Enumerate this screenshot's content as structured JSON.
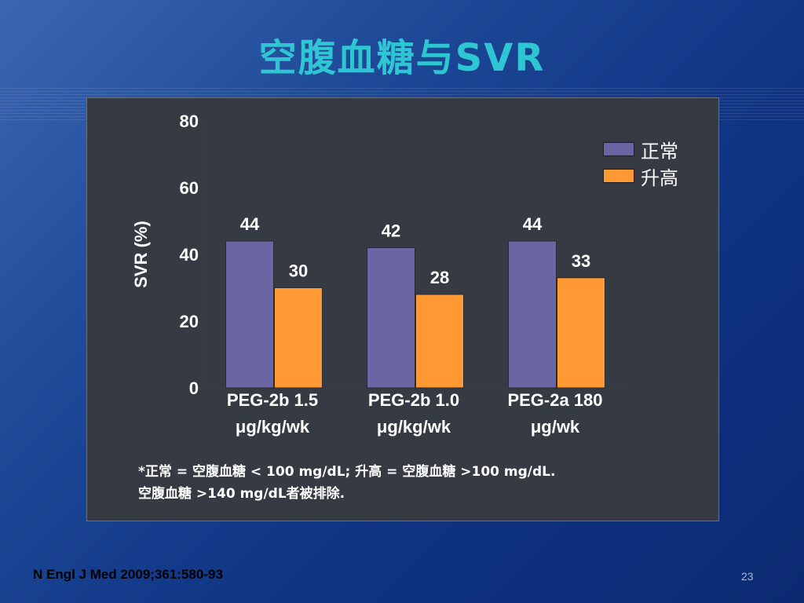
{
  "slide": {
    "title": "空腹血糖与SVR",
    "footnote_line1": "*正常 = 空腹血糖 < 100 mg/dL; 升高 = 空腹血糖 >100 mg/dL.",
    "footnote_line2": "空腹血糖 >140 mg/dL者被排除.",
    "citation": "N Engl J Med 2009;361:580-93",
    "page_number": "23"
  },
  "chart_data": {
    "type": "bar",
    "title": "",
    "ylabel": "SVR (%)",
    "xlabel": "",
    "ylim": [
      0,
      80
    ],
    "yticks": [
      0,
      20,
      40,
      60,
      80
    ],
    "grid": false,
    "legend_position": "top-right",
    "categories": [
      {
        "line1": "PEG-2b 1.5",
        "line2": "μg/kg/wk"
      },
      {
        "line1": "PEG-2b 1.0",
        "line2": "μg/kg/wk"
      },
      {
        "line1": "PEG-2a 180",
        "line2": "μg/wk"
      }
    ],
    "series": [
      {
        "name": "正常",
        "values": [
          44,
          42,
          44
        ],
        "color": "#6a65a3"
      },
      {
        "name": "升高",
        "values": [
          30,
          28,
          33
        ],
        "color": "#ff9933"
      }
    ]
  }
}
